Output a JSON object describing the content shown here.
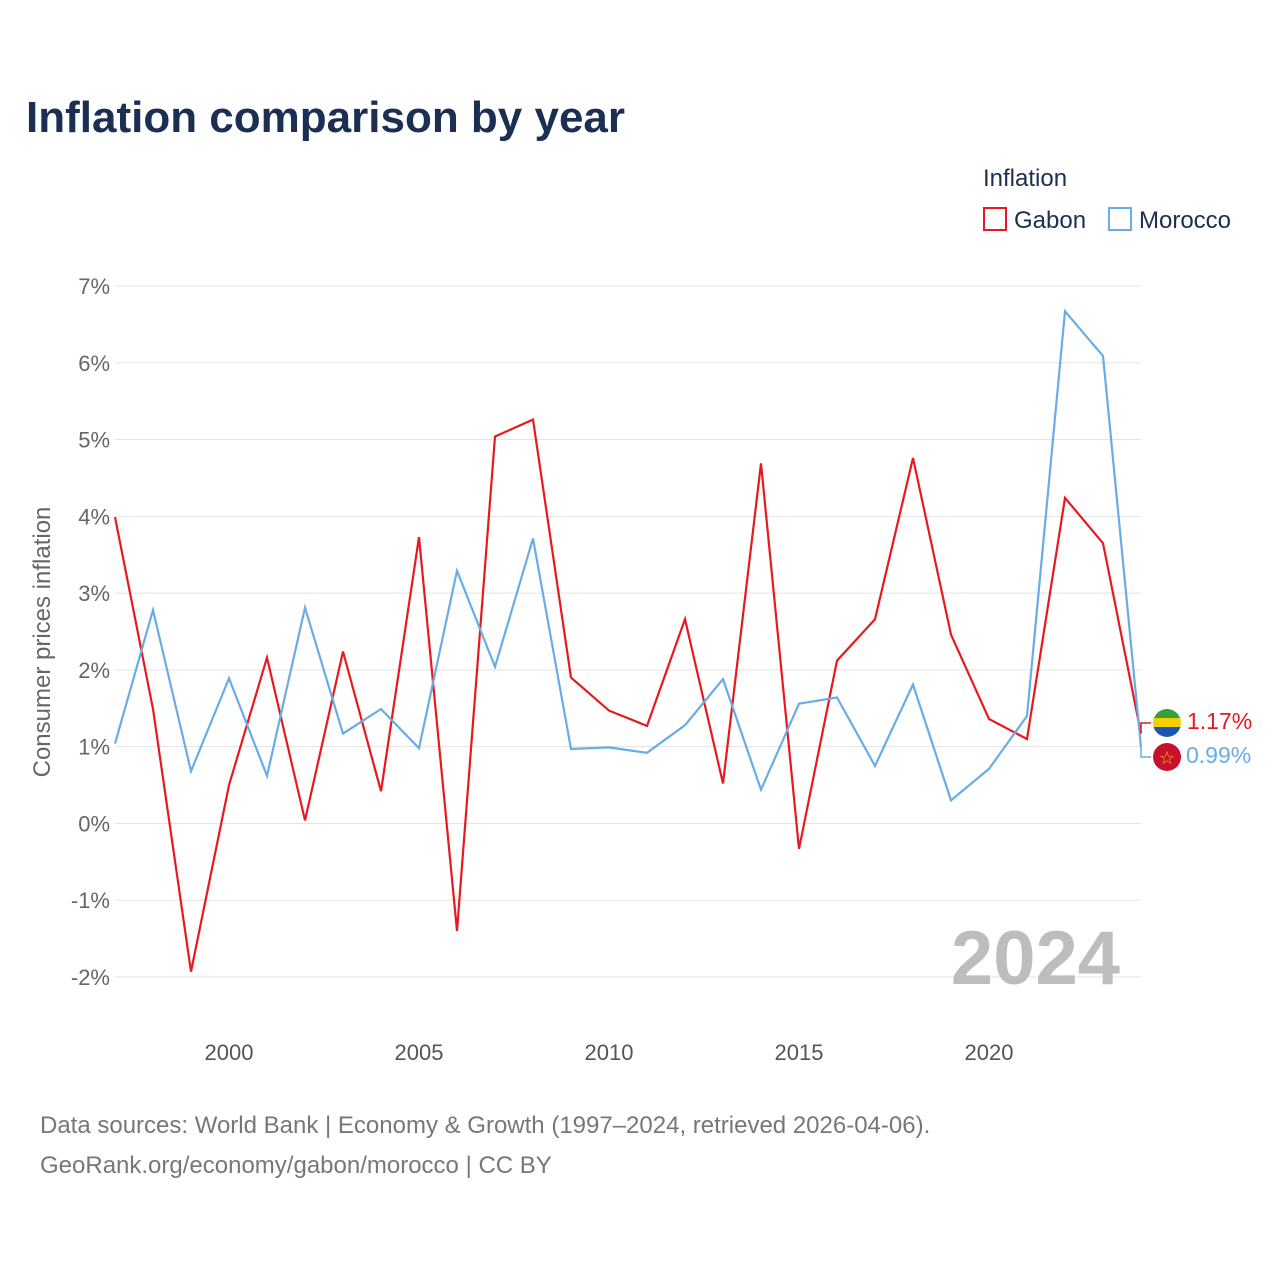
{
  "title": "Inflation comparison by year",
  "watermark_year": "2024",
  "source": {
    "line1": "Data sources: World Bank | Economy & Growth (1997–2024, retrieved 2026-04-06).",
    "line2": "GeoRank.org/economy/gabon/morocco | CC BY"
  },
  "colors": {
    "gabon": "#e8191e",
    "morocco": "#6aace6",
    "title": "#1b2f52"
  },
  "chart_data": {
    "type": "line",
    "title": "Inflation comparison by year",
    "ylabel": "Consumer prices inflation",
    "xlabel": "",
    "legend_title": "Inflation",
    "legend_position": "top-right",
    "ylim": [
      -2,
      7
    ],
    "xlim": [
      1997,
      2024
    ],
    "yticks": [
      7,
      6,
      5,
      4,
      3,
      2,
      1,
      0,
      -1,
      -2
    ],
    "ytick_labels": [
      "7%",
      "6%",
      "5%",
      "4%",
      "3%",
      "2%",
      "1%",
      "0%",
      "-1%",
      "-2%"
    ],
    "xticks": [
      2000,
      2005,
      2010,
      2015,
      2020
    ],
    "xtick_labels": [
      "2000",
      "2005",
      "2010",
      "2015",
      "2020"
    ],
    "x": [
      1997,
      1998,
      1999,
      2000,
      2001,
      2002,
      2003,
      2004,
      2005,
      2006,
      2007,
      2008,
      2009,
      2010,
      2011,
      2012,
      2013,
      2014,
      2015,
      2016,
      2017,
      2018,
      2019,
      2020,
      2021,
      2022,
      2023,
      2024
    ],
    "series": [
      {
        "name": "Gabon",
        "color": "#e8191e",
        "end_label": "1.17%",
        "values": [
          3.99,
          1.49,
          -1.93,
          0.5,
          2.16,
          0.04,
          2.24,
          0.42,
          3.73,
          -1.4,
          5.04,
          5.26,
          1.9,
          1.47,
          1.27,
          2.66,
          0.52,
          4.69,
          -0.33,
          2.12,
          2.66,
          4.76,
          2.46,
          1.36,
          1.1,
          4.24,
          3.65,
          1.17
        ]
      },
      {
        "name": "Morocco",
        "color": "#6aace6",
        "end_label": "0.99%",
        "values": [
          1.04,
          2.78,
          0.68,
          1.89,
          0.62,
          2.81,
          1.17,
          1.49,
          0.98,
          3.29,
          2.04,
          3.71,
          0.97,
          0.99,
          0.92,
          1.28,
          1.88,
          0.44,
          1.56,
          1.64,
          0.75,
          1.81,
          0.3,
          0.71,
          1.4,
          6.67,
          6.09,
          0.99
        ]
      }
    ]
  }
}
